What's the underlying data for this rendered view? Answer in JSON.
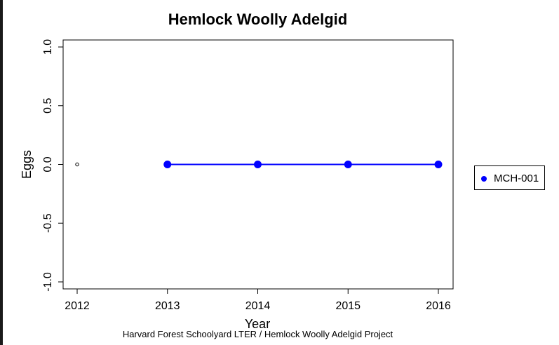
{
  "chart_data": {
    "type": "line",
    "title": "Hemlock Woolly Adelgid",
    "xlabel": "Year",
    "ylabel": "Eggs",
    "xlim": [
      2012,
      2016
    ],
    "ylim": [
      -1.0,
      1.0
    ],
    "x_ticks": [
      "2012",
      "2013",
      "2014",
      "2015",
      "2016"
    ],
    "y_ticks": [
      "-1.0",
      "-0.5",
      "0.0",
      "0.5",
      "1.0"
    ],
    "reference_point": {
      "x": 2012,
      "y": 0
    },
    "series": [
      {
        "name": "MCH-001",
        "color": "#0000ff",
        "x": [
          2013,
          2014,
          2015,
          2016
        ],
        "y": [
          0,
          0,
          0,
          0
        ]
      }
    ],
    "legend_position": "right",
    "grid": false,
    "caption": "Harvard Forest Schoolyard LTER / Hemlock Woolly Adelgid Project"
  }
}
